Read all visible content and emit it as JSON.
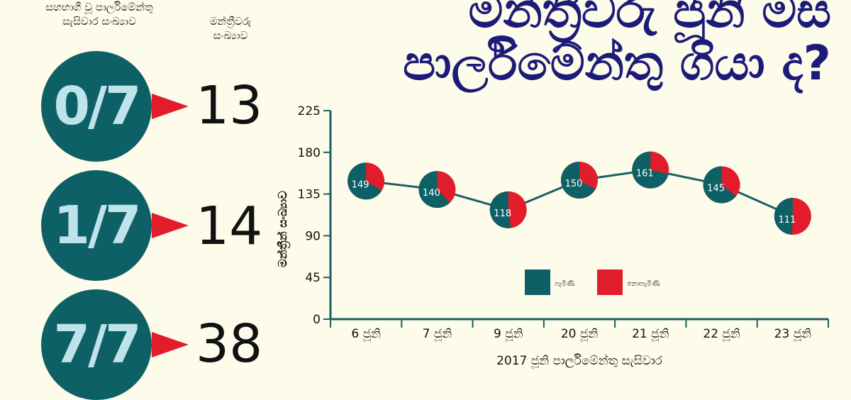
{
  "title": {
    "line1": "මන්ත්‍රීවරු ජූනි මස",
    "line2": "පාර්ලිමේන්තු ගියා ද?"
  },
  "attendance_summary": {
    "header_fraction": "සහභාගී වූ පාර්ලිමේන්තු සැසිවාර සංඛ්‍යාව",
    "header_count": "මන්ත්‍රීවරු සංඛ්‍යාව",
    "rows": [
      {
        "fraction": "0/7",
        "count": "13"
      },
      {
        "fraction": "1/7",
        "count": "14"
      },
      {
        "fraction": "7/7",
        "count": "38"
      }
    ]
  },
  "colors": {
    "background": "#fdfbea",
    "title": "#1c1c78",
    "teal": "#0d6065",
    "circle_text": "#bfe3ea",
    "red": "#e11d2b",
    "axis": "#1c5f62"
  },
  "chart_data": {
    "type": "line",
    "xlabel": "2017 ජූනි පාර්ලිමේන්තු සැසිවාර",
    "ylabel": "මන්ත්‍රීන් සංඛ්‍යාව",
    "categories": [
      "6 ජූනි",
      "7 ජූනි",
      "9 ජූනි",
      "20 ජූනි",
      "21 ජූනි",
      "22 ජූනි",
      "23 ජූනි"
    ],
    "series": [
      {
        "name": "පැමිණි",
        "values": [
          149,
          140,
          118,
          150,
          161,
          145,
          111
        ]
      }
    ],
    "total_members": 225,
    "yticks": [
      0,
      45,
      90,
      135,
      180,
      225
    ],
    "ylim": [
      0,
      225
    ],
    "legend": [
      {
        "label": "පැමිණි",
        "color": "#0d6065"
      },
      {
        "label": "නොපැමිණි",
        "color": "#e11d2b"
      }
    ],
    "legend_position": "bottom-center",
    "grid": false
  }
}
